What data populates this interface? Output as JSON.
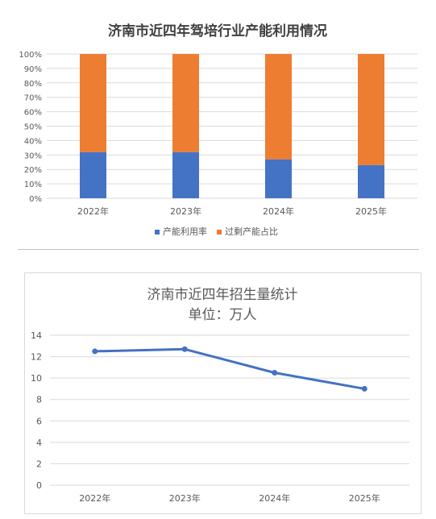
{
  "chart_data": [
    {
      "type": "bar",
      "stacked": true,
      "title": "济南市近四年驾培行业产能利用情况",
      "categories": [
        "2022年",
        "2023年",
        "2024年",
        "2025年"
      ],
      "series": [
        {
          "name": "产能利用率",
          "color": "#4472C4",
          "values": [
            32,
            32,
            27,
            23
          ]
        },
        {
          "name": "过剩产能占比",
          "color": "#ED7D31",
          "values": [
            68,
            68,
            73,
            77
          ]
        }
      ],
      "yticks": [
        "0%",
        "10%",
        "20%",
        "30%",
        "40%",
        "50%",
        "60%",
        "70%",
        "80%",
        "90%",
        "100%"
      ],
      "ylim": [
        0,
        100
      ],
      "grid": true,
      "legend": "bottom"
    },
    {
      "type": "line",
      "title": "济南市近四年招生量统计",
      "subtitle": "单位：万人",
      "categories": [
        "2022年",
        "2023年",
        "2024年",
        "2025年"
      ],
      "series": [
        {
          "color": "#4472C4",
          "values": [
            12.5,
            12.7,
            10.5,
            9.0
          ]
        }
      ],
      "yticks": [
        "0",
        "2",
        "4",
        "6",
        "8",
        "10",
        "12",
        "14"
      ],
      "ylim": [
        0,
        14
      ],
      "grid": true
    }
  ]
}
